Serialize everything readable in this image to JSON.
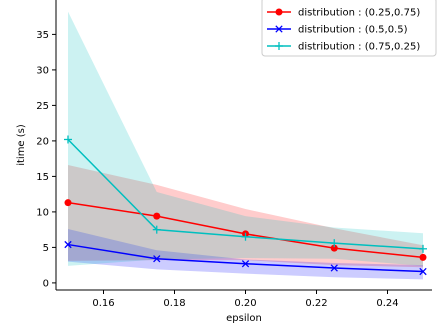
{
  "chart_data": {
    "type": "line",
    "title": "",
    "xlabel": "epsilon",
    "ylabel": "itime (s)",
    "xlim": [
      0.145,
      0.255
    ],
    "ylim": [
      -1,
      40
    ],
    "xticks": [
      0.16,
      0.18,
      0.2,
      0.22,
      0.24
    ],
    "xtick_labels": [
      "0.16",
      "0.18",
      "0.20",
      "0.22",
      "0.24"
    ],
    "yticks": [
      0,
      5,
      10,
      15,
      20,
      25,
      30,
      35
    ],
    "ytick_labels": [
      "0",
      "5",
      "10",
      "15",
      "20",
      "25",
      "30",
      "35"
    ],
    "grid": false,
    "legend_position": "top-right",
    "x": [
      0.15,
      0.175,
      0.2,
      0.225,
      0.25
    ],
    "series": [
      {
        "name": "distribution : (0.25,0.75)",
        "color": "#ff0000",
        "marker": "circle",
        "values": [
          11.3,
          9.4,
          6.9,
          4.9,
          3.6
        ],
        "band_low": [
          3.1,
          3.2,
          3.2,
          2.5,
          2.2
        ],
        "band_high": [
          16.6,
          13.8,
          10.4,
          7.7,
          5.3
        ]
      },
      {
        "name": "distribution : (0.5,0.5)",
        "color": "#0000ff",
        "marker": "x",
        "values": [
          5.4,
          3.4,
          2.7,
          2.1,
          1.6
        ],
        "band_low": [
          3.0,
          1.9,
          1.3,
          0.8,
          0.5
        ],
        "band_high": [
          7.6,
          4.6,
          3.3,
          2.8,
          2.5
        ]
      },
      {
        "name": "distribution : (0.75,0.25)",
        "color": "#00bfbf",
        "marker": "plus",
        "values": [
          20.2,
          7.5,
          6.5,
          5.6,
          4.8
        ],
        "band_low": [
          2.4,
          3.3,
          3.5,
          3.4,
          2.4
        ],
        "band_high": [
          38.2,
          12.8,
          9.4,
          7.8,
          7.0
        ]
      }
    ]
  }
}
